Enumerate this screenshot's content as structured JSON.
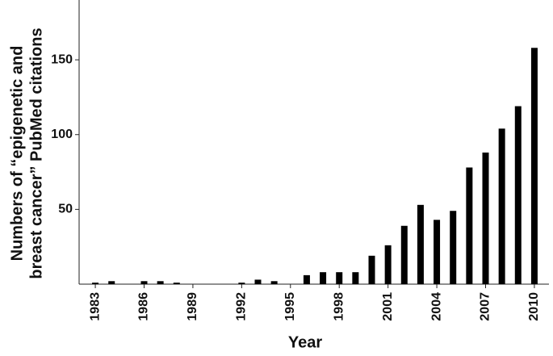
{
  "chart_data": {
    "type": "bar",
    "x_label": "Year",
    "y_label": [
      "Numbers of “epigenetic and",
      "breast cancer” PubMed citations"
    ],
    "categories": [
      "1983",
      null,
      null,
      "1986",
      null,
      null,
      "1989",
      null,
      null,
      "1992",
      null,
      null,
      "1995",
      null,
      null,
      "1998",
      null,
      null,
      "2001",
      null,
      null,
      "2004",
      null,
      null,
      "2007",
      null,
      null,
      "2010"
    ],
    "values": [
      1,
      2,
      0,
      2,
      2,
      1,
      0,
      0,
      0,
      1,
      3,
      2,
      0,
      6,
      8,
      8,
      8,
      19,
      26,
      39,
      53,
      43,
      49,
      78,
      88,
      104,
      119,
      158
    ],
    "color": "#000000",
    "ylim": [
      0,
      190
    ],
    "yticks": [
      50,
      100,
      150
    ],
    "grid": false
  }
}
